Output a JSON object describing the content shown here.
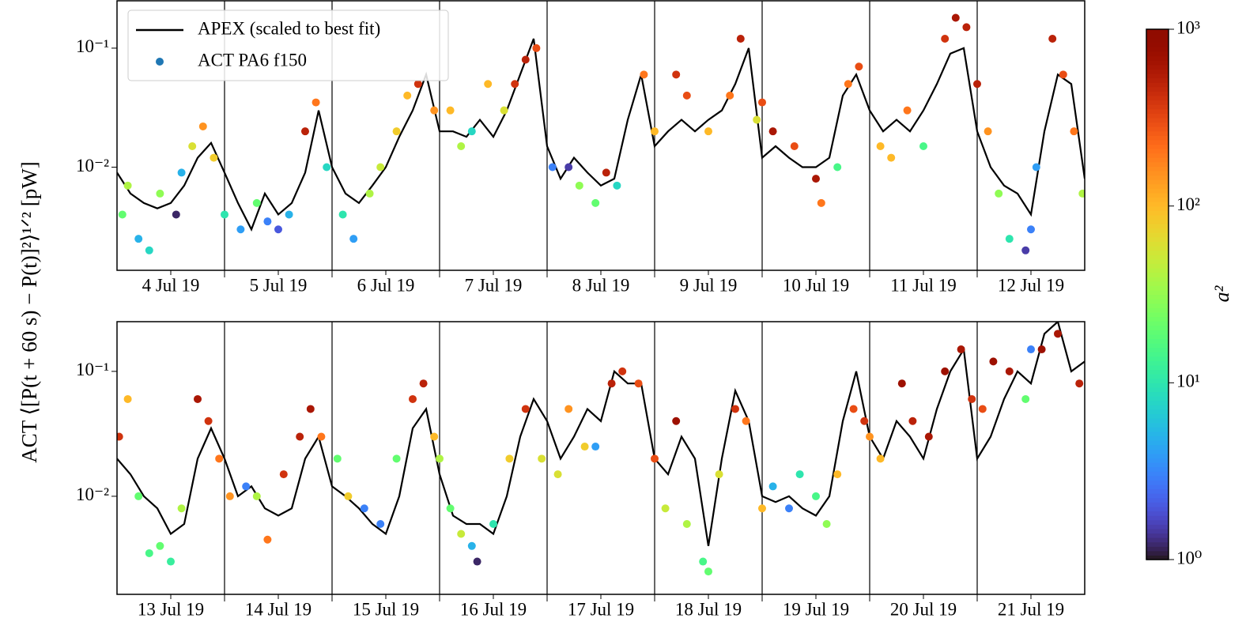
{
  "chart_data": [
    {
      "type": "line",
      "log_y": true,
      "ylabel": "ACT ⟨[P(t + 60 s) − P(t)]²⟩¹ᐟ² [pW]",
      "legend": "upper left",
      "xlim": [
        0,
        9
      ],
      "ylim": [
        0.00136,
        0.25
      ],
      "xticks": [
        {
          "value": 0.5,
          "label": "4 Jul 19"
        },
        {
          "value": 1.5,
          "label": "5 Jul 19"
        },
        {
          "value": 2.5,
          "label": "6 Jul 19"
        },
        {
          "value": 3.5,
          "label": "7 Jul 19"
        },
        {
          "value": 4.5,
          "label": "8 Jul 19"
        },
        {
          "value": 5.5,
          "label": "9 Jul 19"
        },
        {
          "value": 6.5,
          "label": "10 Jul 19"
        },
        {
          "value": 7.5,
          "label": "11 Jul 19"
        },
        {
          "value": 8.5,
          "label": "12 Jul 19"
        }
      ],
      "yticks": [
        {
          "value": 0.01,
          "label": "10⁻²"
        },
        {
          "value": 0.1,
          "label": "10⁻¹"
        }
      ],
      "vlines": [
        1,
        2,
        3,
        4,
        5,
        6,
        7,
        8
      ],
      "x": [
        0,
        0.125,
        0.25,
        0.375,
        0.5,
        0.625,
        0.75,
        0.875,
        1,
        1.125,
        1.25,
        1.375,
        1.5,
        1.625,
        1.75,
        1.875,
        2,
        2.125,
        2.25,
        2.375,
        2.5,
        2.625,
        2.75,
        2.875,
        3,
        3.125,
        3.25,
        3.375,
        3.5,
        3.625,
        3.75,
        3.875,
        4,
        4.125,
        4.25,
        4.375,
        4.5,
        4.625,
        4.75,
        4.875,
        5,
        5.125,
        5.25,
        5.375,
        5.5,
        5.625,
        5.75,
        5.875,
        6,
        6.125,
        6.25,
        6.375,
        6.5,
        6.625,
        6.75,
        6.875,
        7,
        7.125,
        7.25,
        7.375,
        7.5,
        7.625,
        7.75,
        7.875,
        8,
        8.125,
        8.25,
        8.375,
        8.5,
        8.625,
        8.75,
        8.875,
        9
      ],
      "series": [
        {
          "name": "APEX (scaled to best fit)",
          "type": "line",
          "color": "#000000",
          "values": [
            0.009,
            0.006,
            0.005,
            0.0045,
            0.005,
            0.007,
            0.012,
            0.016,
            0.009,
            0.005,
            0.003,
            0.006,
            0.004,
            0.005,
            0.009,
            0.03,
            0.01,
            0.006,
            0.005,
            0.007,
            0.01,
            0.018,
            0.03,
            0.06,
            0.02,
            0.02,
            0.018,
            0.025,
            0.018,
            0.03,
            0.06,
            0.12,
            0.015,
            0.008,
            0.012,
            0.009,
            0.007,
            0.008,
            0.025,
            0.06,
            0.015,
            0.02,
            0.025,
            0.02,
            0.025,
            0.03,
            0.05,
            0.1,
            0.012,
            0.015,
            0.012,
            0.01,
            0.01,
            0.012,
            0.04,
            0.06,
            0.03,
            0.02,
            0.025,
            0.02,
            0.03,
            0.05,
            0.09,
            0.1,
            0.02,
            0.01,
            0.007,
            0.006,
            0.004,
            0.02,
            0.06,
            0.05,
            0.008
          ]
        },
        {
          "name": "ACT PA6 f150",
          "type": "scatter",
          "color": "#1f77b4",
          "x": [
            0.05,
            0.1,
            0.2,
            0.3,
            0.4,
            0.55,
            0.6,
            0.7,
            0.8,
            0.9,
            1.0,
            1.15,
            1.3,
            1.4,
            1.5,
            1.6,
            1.75,
            1.85,
            1.95,
            2.1,
            2.2,
            2.35,
            2.45,
            2.6,
            2.7,
            2.8,
            2.95,
            3.1,
            3.2,
            3.3,
            3.45,
            3.6,
            3.7,
            3.8,
            3.9,
            4.05,
            4.2,
            4.3,
            4.45,
            4.55,
            4.65,
            4.9,
            5.0,
            5.2,
            5.3,
            5.5,
            5.7,
            5.8,
            5.95,
            6.0,
            6.1,
            6.3,
            6.5,
            6.55,
            6.7,
            6.8,
            6.9,
            7.1,
            7.2,
            7.35,
            7.5,
            7.7,
            7.8,
            7.9,
            8.0,
            8.1,
            8.2,
            8.3,
            8.45,
            8.5,
            8.55,
            8.7,
            8.8,
            8.9,
            8.98
          ],
          "values": [
            0.004,
            0.007,
            0.0025,
            0.002,
            0.006,
            0.004,
            0.009,
            0.015,
            0.022,
            0.012,
            0.004,
            0.003,
            0.005,
            0.0035,
            0.003,
            0.004,
            0.02,
            0.035,
            0.01,
            0.004,
            0.0025,
            0.006,
            0.01,
            0.02,
            0.04,
            0.05,
            0.03,
            0.03,
            0.015,
            0.02,
            0.05,
            0.03,
            0.05,
            0.08,
            0.1,
            0.01,
            0.01,
            0.007,
            0.005,
            0.009,
            0.007,
            0.06,
            0.02,
            0.06,
            0.04,
            0.02,
            0.04,
            0.12,
            0.025,
            0.035,
            0.02,
            0.015,
            0.008,
            0.005,
            0.01,
            0.05,
            0.07,
            0.015,
            0.012,
            0.03,
            0.015,
            0.12,
            0.18,
            0.15,
            0.05,
            0.02,
            0.006,
            0.0025,
            0.002,
            0.003,
            0.01,
            0.12,
            0.06,
            0.02,
            0.006
          ],
          "c": [
            20,
            40,
            5,
            8,
            30,
            1.2,
            5,
            60,
            150,
            80,
            10,
            4,
            20,
            3,
            2,
            5,
            500,
            200,
            8,
            10,
            4,
            40,
            50,
            80,
            100,
            400,
            150,
            100,
            40,
            8,
            100,
            60,
            400,
            500,
            300,
            3,
            1.5,
            30,
            20,
            500,
            8,
            200,
            100,
            400,
            300,
            100,
            200,
            500,
            60,
            300,
            600,
            300,
            600,
            200,
            15,
            200,
            300,
            100,
            100,
            200,
            15,
            400,
            600,
            500,
            500,
            150,
            30,
            10,
            1.5,
            3,
            4,
            500,
            300,
            200,
            40
          ]
        }
      ]
    },
    {
      "type": "line",
      "log_y": true,
      "xlim": [
        0,
        9
      ],
      "ylim": [
        0.00164,
        0.25
      ],
      "xticks": [
        {
          "value": 0.5,
          "label": "13 Jul 19"
        },
        {
          "value": 1.5,
          "label": "14 Jul 19"
        },
        {
          "value": 2.5,
          "label": "15 Jul 19"
        },
        {
          "value": 3.5,
          "label": "16 Jul 19"
        },
        {
          "value": 4.5,
          "label": "17 Jul 19"
        },
        {
          "value": 5.5,
          "label": "18 Jul 19"
        },
        {
          "value": 6.5,
          "label": "19 Jul 19"
        },
        {
          "value": 7.5,
          "label": "20 Jul 19"
        },
        {
          "value": 8.5,
          "label": "21 Jul 19"
        }
      ],
      "yticks": [
        {
          "value": 0.01,
          "label": "10⁻²"
        },
        {
          "value": 0.1,
          "label": "10⁻¹"
        }
      ],
      "vlines": [
        1,
        2,
        3,
        4,
        5,
        6,
        7,
        8
      ],
      "x": [
        0,
        0.125,
        0.25,
        0.375,
        0.5,
        0.625,
        0.75,
        0.875,
        1,
        1.125,
        1.25,
        1.375,
        1.5,
        1.625,
        1.75,
        1.875,
        2,
        2.125,
        2.25,
        2.375,
        2.5,
        2.625,
        2.75,
        2.875,
        3,
        3.125,
        3.25,
        3.375,
        3.5,
        3.625,
        3.75,
        3.875,
        4,
        4.125,
        4.25,
        4.375,
        4.5,
        4.625,
        4.75,
        4.875,
        5,
        5.125,
        5.25,
        5.375,
        5.5,
        5.625,
        5.75,
        5.875,
        6,
        6.125,
        6.25,
        6.375,
        6.5,
        6.625,
        6.75,
        6.875,
        7,
        7.125,
        7.25,
        7.375,
        7.5,
        7.625,
        7.75,
        7.875,
        8,
        8.125,
        8.25,
        8.375,
        8.5,
        8.625,
        8.75,
        8.875,
        9
      ],
      "series": [
        {
          "type": "line",
          "color": "#000000",
          "values": [
            0.02,
            0.015,
            0.01,
            0.008,
            0.005,
            0.006,
            0.02,
            0.035,
            0.02,
            0.01,
            0.012,
            0.008,
            0.007,
            0.008,
            0.02,
            0.03,
            0.012,
            0.01,
            0.008,
            0.006,
            0.005,
            0.01,
            0.035,
            0.05,
            0.015,
            0.007,
            0.006,
            0.006,
            0.005,
            0.01,
            0.03,
            0.06,
            0.04,
            0.02,
            0.03,
            0.05,
            0.04,
            0.1,
            0.08,
            0.08,
            0.02,
            0.015,
            0.03,
            0.02,
            0.004,
            0.02,
            0.07,
            0.04,
            0.01,
            0.009,
            0.01,
            0.008,
            0.007,
            0.01,
            0.04,
            0.1,
            0.03,
            0.02,
            0.04,
            0.03,
            0.02,
            0.05,
            0.1,
            0.15,
            0.02,
            0.03,
            0.06,
            0.1,
            0.08,
            0.2,
            0.25,
            0.1,
            0.12
          ]
        },
        {
          "type": "scatter",
          "color": "#1f77b4",
          "x": [
            0.02,
            0.1,
            0.2,
            0.3,
            0.4,
            0.5,
            0.6,
            0.75,
            0.85,
            0.95,
            1.05,
            1.2,
            1.3,
            1.4,
            1.55,
            1.7,
            1.8,
            1.9,
            2.05,
            2.15,
            2.3,
            2.45,
            2.6,
            2.75,
            2.85,
            2.95,
            3.0,
            3.1,
            3.2,
            3.3,
            3.35,
            3.5,
            3.65,
            3.8,
            3.95,
            4.1,
            4.2,
            4.35,
            4.45,
            4.6,
            4.7,
            4.85,
            5.0,
            5.1,
            5.2,
            5.3,
            5.45,
            5.5,
            5.6,
            5.75,
            5.85,
            6.0,
            6.1,
            6.25,
            6.35,
            6.5,
            6.6,
            6.7,
            6.85,
            6.95,
            7.0,
            7.1,
            7.3,
            7.4,
            7.55,
            7.7,
            7.85,
            7.95,
            8.05,
            8.15,
            8.3,
            8.45,
            8.5,
            8.6,
            8.75,
            8.95
          ],
          "values": [
            0.03,
            0.06,
            0.01,
            0.0035,
            0.004,
            0.003,
            0.008,
            0.06,
            0.04,
            0.02,
            0.01,
            0.012,
            0.01,
            0.0045,
            0.015,
            0.03,
            0.05,
            0.03,
            0.02,
            0.01,
            0.008,
            0.006,
            0.02,
            0.06,
            0.08,
            0.03,
            0.02,
            0.008,
            0.005,
            0.004,
            0.003,
            0.006,
            0.02,
            0.05,
            0.02,
            0.015,
            0.05,
            0.025,
            0.025,
            0.08,
            0.1,
            0.08,
            0.02,
            0.008,
            0.04,
            0.006,
            0.003,
            0.0025,
            0.015,
            0.05,
            0.04,
            0.008,
            0.012,
            0.008,
            0.015,
            0.01,
            0.006,
            0.015,
            0.05,
            0.04,
            0.03,
            0.02,
            0.08,
            0.04,
            0.03,
            0.1,
            0.15,
            0.06,
            0.05,
            0.12,
            0.1,
            0.06,
            0.15,
            0.15,
            0.2,
            0.08
          ],
          "c": [
            400,
            100,
            20,
            15,
            20,
            12,
            40,
            600,
            400,
            200,
            150,
            3,
            40,
            200,
            400,
            500,
            600,
            200,
            20,
            80,
            3,
            3,
            20,
            400,
            500,
            100,
            40,
            20,
            50,
            5,
            1.2,
            10,
            80,
            400,
            60,
            60,
            150,
            80,
            4,
            500,
            400,
            300,
            300,
            50,
            700,
            40,
            15,
            20,
            60,
            400,
            200,
            100,
            5,
            3,
            10,
            15,
            30,
            100,
            300,
            400,
            150,
            100,
            700,
            500,
            600,
            700,
            600,
            400,
            300,
            700,
            600,
            20,
            3,
            700,
            600,
            500
          ]
        }
      ]
    }
  ],
  "colorbar": {
    "label": "a²",
    "lim": [
      1,
      1000
    ],
    "colormap": "turbo",
    "ticks": [
      {
        "value": 1,
        "label": "10⁰"
      },
      {
        "value": 10,
        "label": "10¹"
      },
      {
        "value": 100,
        "label": "10²"
      },
      {
        "value": 1000,
        "label": "10³"
      }
    ]
  }
}
